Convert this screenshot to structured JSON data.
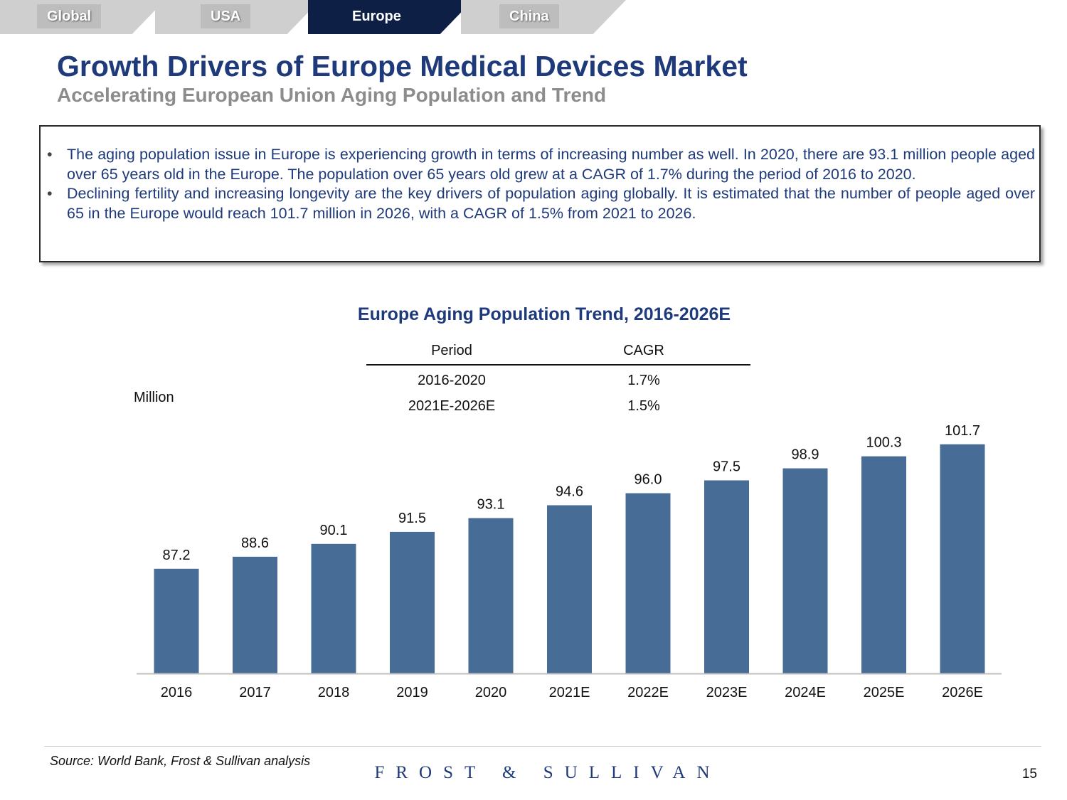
{
  "nav": {
    "tabs": [
      {
        "label": "Global",
        "active": false
      },
      {
        "label": "USA",
        "active": false
      },
      {
        "label": "Europe",
        "active": true
      },
      {
        "label": "China",
        "active": false
      }
    ]
  },
  "header": {
    "title": "Growth Drivers of Europe Medical Devices Market",
    "subtitle": "Accelerating European Union Aging Population and Trend"
  },
  "bullets": [
    "The aging population issue in Europe is experiencing growth in terms of increasing number as well. In 2020, there are 93.1 million people aged over 65 years old in the Europe. The population over 65 years old grew at a CAGR of 1.7% during the period of 2016 to 2020.",
    "Declining fertility and increasing longevity are the key drivers of population aging globally. It is estimated that the number of people aged over 65 in the Europe would reach 101.7 million in 2026, with a CAGR of 1.5% from 2021 to 2026."
  ],
  "cagr_table": {
    "headers": [
      "Period",
      "CAGR"
    ],
    "rows": [
      [
        "2016-2020",
        "1.7%"
      ],
      [
        "2021E-2026E",
        "1.5%"
      ]
    ]
  },
  "chart_data": {
    "type": "bar",
    "title": "Europe Aging Population Trend, 2016-2026E",
    "ylabel": "Million",
    "xlabel": "",
    "categories": [
      "2016",
      "2017",
      "2018",
      "2019",
      "2020",
      "2021E",
      "2022E",
      "2023E",
      "2024E",
      "2025E",
      "2026E"
    ],
    "values": [
      87.2,
      88.6,
      90.1,
      91.5,
      93.1,
      94.6,
      96.0,
      97.5,
      98.9,
      100.3,
      101.7
    ],
    "value_labels": [
      "87.2",
      "88.6",
      "90.1",
      "91.5",
      "93.1",
      "94.6",
      "96.0",
      "97.5",
      "98.9",
      "100.3",
      "101.7"
    ],
    "ylim": [
      75,
      105
    ],
    "grid": false,
    "bar_color": "#476c95"
  },
  "footer": {
    "source": "Source: World Bank,  Frost & Sullivan analysis",
    "brand": "FROST & SULLIVAN",
    "page_number": "15"
  }
}
